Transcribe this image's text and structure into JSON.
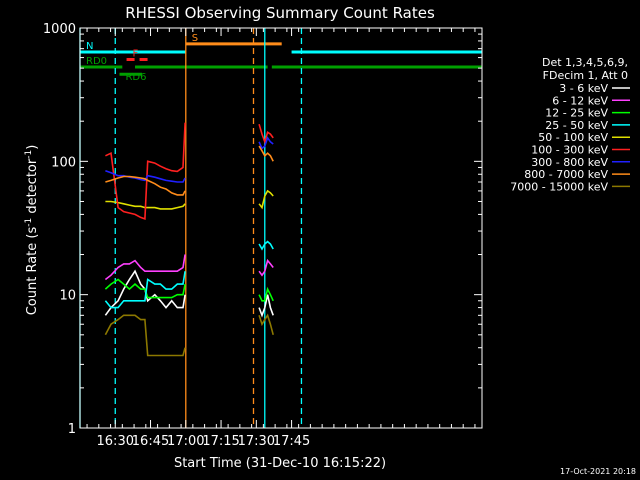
{
  "chart_data": {
    "type": "line",
    "title": "RHESSI Observing Summary Count Rates",
    "xlabel": "Start Time (31-Dec-10 16:15:22)",
    "ylabel_main": "Count Rate (s",
    "ylabel_sup1": "-1",
    "ylabel_mid": " detector",
    "ylabel_sup2": "-1",
    "ylabel_end": ")",
    "yscale": "log",
    "ylim": [
      1,
      1000
    ],
    "xlim_minutes": [
      16.25,
      19.1
    ],
    "xticks": [
      {
        "t": 16.5,
        "label": "16:30"
      },
      {
        "t": 16.75,
        "label": "16:45"
      },
      {
        "t": 17.0,
        "label": "17:00"
      },
      {
        "t": 17.25,
        "label": "17:15"
      },
      {
        "t": 17.5,
        "label": "17:30"
      },
      {
        "t": 17.75,
        "label": "17:45"
      }
    ],
    "yticks": [
      {
        "v": 1,
        "label": "1"
      },
      {
        "v": 10,
        "label": "10"
      },
      {
        "v": 100,
        "label": "100"
      },
      {
        "v": 1000,
        "label": "1000"
      }
    ],
    "legend_header": [
      "Det 1,3,4,5,6,9,",
      "FDecim 1, Att 0"
    ],
    "legend_placement": "right",
    "timestamp": "17-Oct-2021 20:18",
    "flags": [
      {
        "label": "N",
        "color": "#00ffff",
        "segments": [
          [
            16.25,
            17.0
          ],
          [
            17.75,
            19.1
          ]
        ],
        "level": 660
      },
      {
        "label": "F",
        "color": "#ff2020",
        "segments": [
          [
            16.58,
            16.75
          ]
        ],
        "level": 580,
        "dashed": true
      },
      {
        "label": "S",
        "color": "#ff8c1a",
        "segments": [
          [
            17.0,
            17.68
          ]
        ],
        "level": 760
      },
      {
        "label": "RD0",
        "color": "#00a000",
        "segments": [
          [
            16.25,
            16.55
          ],
          [
            16.64,
            17.58
          ],
          [
            17.61,
            19.1
          ]
        ],
        "level": 510
      },
      {
        "label": "RD6",
        "color": "#00a000",
        "segments": [
          [
            16.53,
            16.69
          ]
        ],
        "level": 450
      }
    ],
    "vlines": [
      {
        "t": 16.25,
        "color": "#00ffff",
        "dashed": false
      },
      {
        "t": 16.5,
        "color": "#00ffff",
        "dashed": true
      },
      {
        "t": 17.0,
        "color": "#ff8c1a",
        "dashed": false
      },
      {
        "t": 17.48,
        "color": "#ff8c1a",
        "dashed": true
      },
      {
        "t": 17.56,
        "color": "#00ffff",
        "dashed": false
      },
      {
        "t": 17.82,
        "color": "#00ffff",
        "dashed": true
      }
    ],
    "series": [
      {
        "name": "3 - 6 keV",
        "color": "#ffffff",
        "segments": [
          {
            "x": [
              16.43,
              16.47,
              16.52,
              16.56,
              16.6,
              16.64,
              16.68,
              16.71,
              16.73,
              16.78,
              16.82,
              16.86,
              16.9,
              16.94,
              16.98,
              16.995
            ],
            "y": [
              7,
              8,
              9,
              11,
              13,
              15,
              12,
              11,
              9,
              10,
              9,
              8,
              9,
              8,
              8,
              10
            ]
          },
          {
            "x": [
              17.52,
              17.54,
              17.56,
              17.58,
              17.6,
              17.62
            ],
            "y": [
              8,
              7,
              8,
              10,
              8,
              7
            ]
          }
        ]
      },
      {
        "name": "6 - 12 keV",
        "color": "#ff40ff",
        "segments": [
          {
            "x": [
              16.43,
              16.47,
              16.52,
              16.56,
              16.6,
              16.64,
              16.68,
              16.71,
              16.73,
              16.78,
              16.82,
              16.86,
              16.9,
              16.94,
              16.98,
              16.995
            ],
            "y": [
              13,
              14,
              16,
              17,
              17,
              18,
              16,
              15,
              15,
              15,
              15,
              15,
              15,
              15,
              16,
              20
            ]
          },
          {
            "x": [
              17.52,
              17.54,
              17.56,
              17.58,
              17.6,
              17.62
            ],
            "y": [
              15,
              14,
              15,
              18,
              17,
              16
            ]
          }
        ]
      },
      {
        "name": "12 - 25 keV",
        "color": "#00ff00",
        "segments": [
          {
            "x": [
              16.43,
              16.47,
              16.52,
              16.56,
              16.6,
              16.64,
              16.68,
              16.71,
              16.73,
              16.78,
              16.82,
              16.86,
              16.9,
              16.94,
              16.98,
              16.995
            ],
            "y": [
              11,
              12,
              13,
              12,
              11,
              12,
              11,
              11,
              9.5,
              9.5,
              9.5,
              9.5,
              9.5,
              10,
              10,
              12
            ]
          },
          {
            "x": [
              17.52,
              17.54,
              17.56,
              17.58,
              17.6,
              17.62
            ],
            "y": [
              10,
              9,
              9,
              11,
              10,
              9
            ]
          }
        ]
      },
      {
        "name": "25 - 50 keV",
        "color": "#00ffff",
        "segments": [
          {
            "x": [
              16.43,
              16.47,
              16.52,
              16.56,
              16.6,
              16.64,
              16.68,
              16.71,
              16.73,
              16.78,
              16.82,
              16.86,
              16.9,
              16.94,
              16.98,
              16.995
            ],
            "y": [
              9,
              8,
              8,
              9,
              9,
              9,
              9,
              9,
              13,
              12,
              12,
              11,
              11,
              12,
              12,
              15
            ]
          },
          {
            "x": [
              17.52,
              17.54,
              17.56,
              17.58,
              17.6,
              17.62
            ],
            "y": [
              24,
              22,
              24,
              25,
              24,
              22
            ]
          }
        ]
      },
      {
        "name": "50 - 100 keV",
        "color": "#e0e000",
        "segments": [
          {
            "x": [
              16.43,
              16.47,
              16.52,
              16.56,
              16.6,
              16.64,
              16.68,
              16.71,
              16.73,
              16.78,
              16.82,
              16.86,
              16.9,
              16.94,
              16.98,
              16.995
            ],
            "y": [
              50,
              50,
              49,
              48,
              47,
              46,
              46,
              45,
              45,
              45,
              44,
              44,
              44,
              45,
              46,
              48
            ]
          },
          {
            "x": [
              17.52,
              17.54,
              17.56,
              17.58,
              17.6,
              17.62
            ],
            "y": [
              48,
              45,
              55,
              60,
              58,
              55
            ]
          }
        ]
      },
      {
        "name": "100 - 300 keV",
        "color": "#ff2020",
        "segments": [
          {
            "x": [
              16.43,
              16.47,
              16.52,
              16.56,
              16.6,
              16.64,
              16.68,
              16.71,
              16.73,
              16.78,
              16.82,
              16.86,
              16.9,
              16.94,
              16.98,
              16.995
            ],
            "y": [
              110,
              115,
              45,
              42,
              41,
              40,
              38,
              37,
              100,
              97,
              92,
              88,
              85,
              84,
              90,
              195
            ]
          },
          {
            "x": [
              17.52,
              17.54,
              17.56,
              17.58,
              17.6,
              17.62
            ],
            "y": [
              190,
              160,
              140,
              165,
              160,
              150
            ]
          }
        ]
      },
      {
        "name": "300 - 800 keV",
        "color": "#2020ff",
        "segments": [
          {
            "x": [
              16.43,
              16.47,
              16.52,
              16.56,
              16.6,
              16.64,
              16.68,
              16.71,
              16.73,
              16.78,
              16.82,
              16.86,
              16.9,
              16.94,
              16.98,
              16.995
            ],
            "y": [
              85,
              82,
              78,
              78,
              76,
              75,
              73,
              72,
              78,
              76,
              74,
              72,
              71,
              70,
              70,
              75
            ]
          },
          {
            "x": [
              17.52,
              17.54,
              17.56,
              17.58,
              17.6,
              17.62
            ],
            "y": [
              140,
              125,
              130,
              150,
              140,
              135
            ]
          }
        ]
      },
      {
        "name": "800 - 7000 keV",
        "color": "#ff8c1a",
        "segments": [
          {
            "x": [
              16.43,
              16.47,
              16.52,
              16.56,
              16.6,
              16.64,
              16.68,
              16.71,
              16.73,
              16.78,
              16.82,
              16.86,
              16.9,
              16.94,
              16.98,
              16.995
            ],
            "y": [
              70,
              72,
              75,
              77,
              77,
              76,
              75,
              74,
              72,
              68,
              64,
              62,
              58,
              56,
              56,
              60
            ]
          },
          {
            "x": [
              17.52,
              17.54,
              17.56,
              17.58,
              17.6,
              17.62
            ],
            "y": [
              130,
              120,
              110,
              115,
              110,
              100
            ]
          }
        ]
      },
      {
        "name": "7000 - 15000 keV",
        "color": "#8c7800",
        "segments": [
          {
            "x": [
              16.43,
              16.47,
              16.52,
              16.56,
              16.6,
              16.64,
              16.68,
              16.71,
              16.73,
              16.78,
              16.82,
              16.86,
              16.9,
              16.94,
              16.98,
              16.995
            ],
            "y": [
              5,
              6,
              6.5,
              7,
              7,
              7,
              6.5,
              6.5,
              3.5,
              3.5,
              3.5,
              3.5,
              3.5,
              3.5,
              3.5,
              4
            ]
          },
          {
            "x": [
              17.52,
              17.54,
              17.56,
              17.58,
              17.6,
              17.62
            ],
            "y": [
              7,
              6,
              6.5,
              7,
              6,
              5
            ]
          }
        ]
      }
    ]
  }
}
